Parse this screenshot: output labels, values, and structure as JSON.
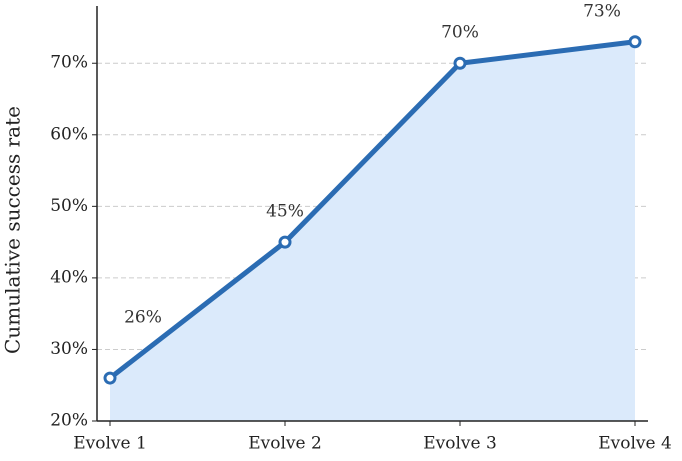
{
  "chart_data": {
    "type": "line",
    "y_label": "Cumulative success rate",
    "categories": [
      "Evolve 1",
      "Evolve 2",
      "Evolve 3",
      "Evolve 4"
    ],
    "values": [
      26,
      45,
      70,
      73
    ],
    "value_labels": [
      "26%",
      "45%",
      "70%",
      "73%"
    ],
    "color": "#2b6cb3",
    "fill_color": "#dbeafb",
    "ylim": [
      20,
      78
    ],
    "yticks": [
      {
        "value": 20,
        "label": "20%"
      },
      {
        "value": 30,
        "label": "30%"
      },
      {
        "value": 40,
        "label": "40%"
      },
      {
        "value": 50,
        "label": "50%"
      },
      {
        "value": 60,
        "label": "60%"
      },
      {
        "value": 70,
        "label": "70%"
      }
    ],
    "grid": true
  }
}
